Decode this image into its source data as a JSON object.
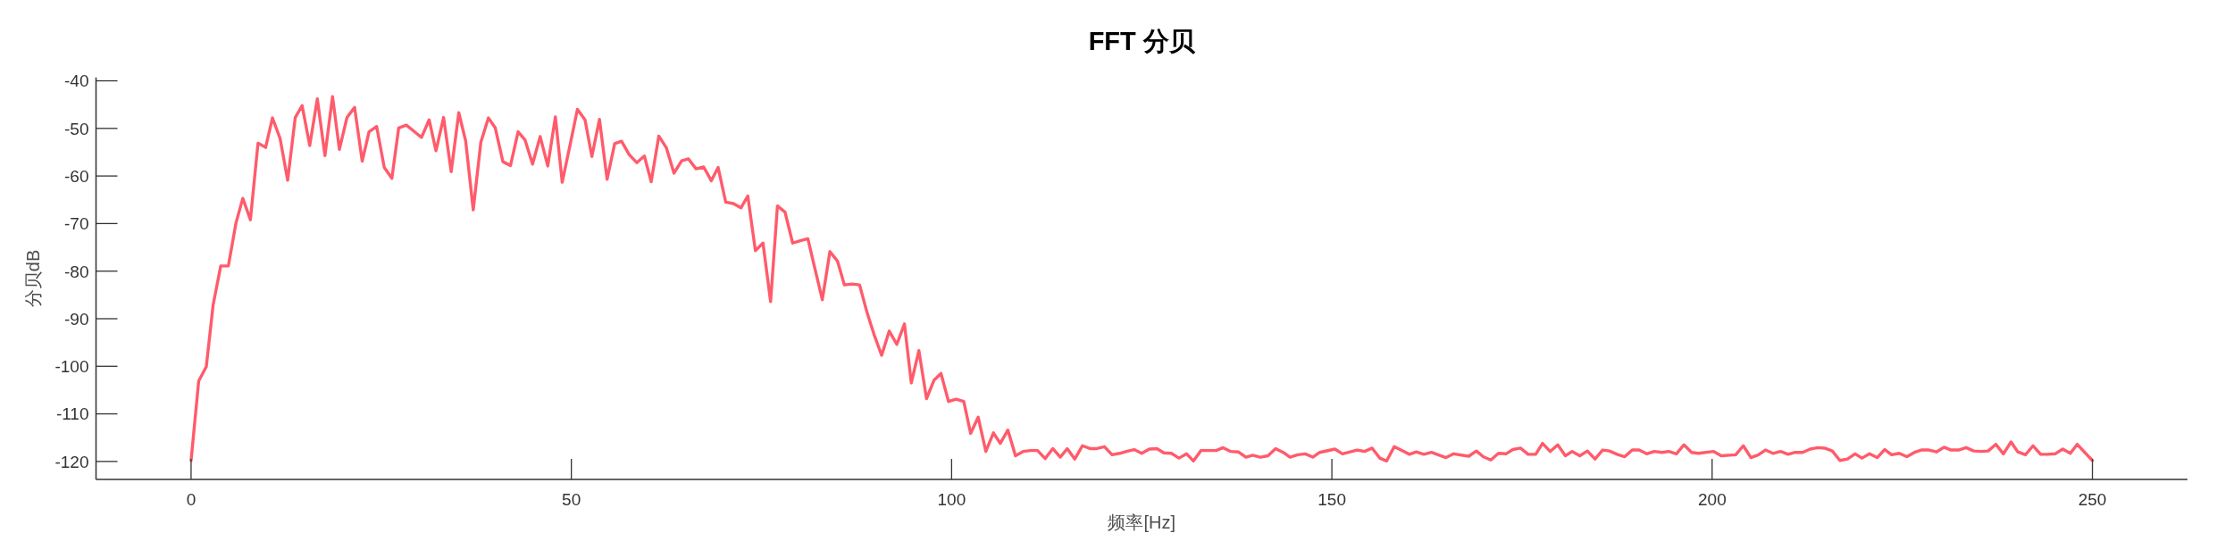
{
  "chart_data": {
    "type": "line",
    "title": "FFT 分贝",
    "xlabel": "频率[Hz]",
    "ylabel": "分贝dB",
    "x": [
      0,
      1.0,
      2.0,
      2.9,
      3.9,
      4.9,
      5.9,
      6.8,
      7.8,
      8.8,
      9.8,
      10.7,
      11.7,
      12.7,
      13.7,
      14.6,
      15.6,
      16.6,
      17.6,
      18.6,
      19.5,
      20.5,
      21.5,
      22.5,
      23.4,
      24.4,
      25.4,
      26.4,
      27.3,
      28.3,
      29.3,
      30.3,
      31.3,
      32.2,
      33.2,
      34.2,
      35.2,
      36.1,
      37.1,
      38.1,
      39.1,
      40.0,
      41.0,
      42.0,
      43.0,
      43.9,
      44.9,
      45.9,
      46.9,
      47.9,
      48.8,
      49.8,
      50.8,
      51.8,
      52.7,
      53.7,
      54.7,
      55.7,
      56.6,
      57.6,
      58.6,
      59.6,
      60.5,
      61.5,
      62.5,
      63.5,
      64.5,
      65.4,
      66.4,
      67.4,
      68.4,
      69.3,
      70.3,
      71.3,
      72.3,
      73.2,
      74.2,
      75.2,
      76.2,
      77.1,
      78.1,
      79.1,
      80.1,
      81.1,
      82.0,
      83.0,
      84.0,
      85.0,
      85.9,
      86.9,
      87.9,
      88.9,
      89.8,
      90.8,
      91.8,
      92.8,
      93.8,
      94.7,
      95.7,
      96.7,
      97.7,
      98.6,
      99.6,
      100.6,
      101.6,
      102.5,
      103.5,
      104.5,
      105.5,
      106.4,
      107.4,
      108.4,
      109.4,
      110.4,
      111.3,
      112.3,
      113.3,
      114.3,
      115.2,
      116.2,
      117.2,
      118.2,
      119.1,
      120.1,
      121.1,
      122.1,
      123.0,
      124.0,
      125.0,
      126.0,
      127.0,
      127.9,
      128.9,
      129.9,
      130.9,
      131.8,
      132.8,
      133.8,
      134.8,
      135.7,
      136.7,
      137.7,
      138.7,
      139.6,
      140.6,
      141.6,
      142.6,
      143.6,
      144.5,
      145.5,
      146.5,
      147.5,
      148.4,
      150.4,
      151.4,
      153.3,
      154.3,
      155.3,
      156.3,
      157.2,
      158.2,
      160.2,
      161.1,
      162.1,
      163.1,
      165.0,
      166.0,
      168.0,
      169.0,
      169.9,
      170.9,
      171.9,
      172.9,
      173.8,
      174.8,
      175.8,
      176.8,
      177.7,
      178.7,
      179.7,
      180.7,
      181.6,
      182.6,
      183.6,
      184.6,
      185.6,
      186.5,
      187.5,
      188.5,
      189.5,
      190.4,
      191.4,
      192.4,
      193.4,
      194.3,
      195.3,
      196.3,
      197.3,
      198.2,
      200.2,
      201.2,
      203.1,
      204.1,
      205.1,
      206.1,
      207.0,
      208.0,
      209.0,
      210.0,
      210.9,
      211.9,
      212.9,
      213.9,
      214.8,
      215.8,
      216.8,
      217.8,
      218.8,
      219.7,
      220.7,
      221.7,
      222.7,
      223.6,
      224.6,
      225.6,
      226.6,
      227.5,
      228.5,
      229.5,
      230.5,
      231.4,
      232.4,
      233.4,
      234.4,
      235.4,
      236.3,
      237.3,
      238.3,
      239.3,
      240.2,
      241.2,
      242.2,
      243.2,
      244.1,
      245.1,
      246.1,
      247.1,
      248.0,
      249.0,
      250
    ],
    "series": [
      {
        "color": "#ff5b6b",
        "values": [
          -119.8,
          -103.1,
          -100.1,
          -87.1,
          -78.9,
          -78.9,
          -69.9,
          -64.7,
          -69.2,
          -53.1,
          -54.0,
          -47.8,
          -52.1,
          -60.9,
          -47.7,
          -45.2,
          -53.6,
          -43.8,
          -55.7,
          -43.3,
          -54.4,
          -47.7,
          -45.6,
          -56.9,
          -50.7,
          -49.6,
          -58.2,
          -60.5,
          -49.9,
          -49.3,
          -50.6,
          -51.9,
          -48.2,
          -54.7,
          -47.7,
          -59.1,
          -46.7,
          -52.6,
          -67.1,
          -52.9,
          -47.8,
          -49.9,
          -57.0,
          -57.8,
          -50.7,
          -52.4,
          -57.5,
          -51.7,
          -57.9,
          -47.6,
          -61.3,
          -53.7,
          -46.0,
          -48.2,
          -55.9,
          -48.1,
          -60.7,
          -53.2,
          -52.7,
          -55.5,
          -57.2,
          -55.8,
          -61.2,
          -51.6,
          -54.1,
          -59.4,
          -56.8,
          -56.4,
          -58.5,
          -58.1,
          -61.0,
          -58.2,
          -65.5,
          -65.8,
          -66.7,
          -64.2,
          -75.7,
          -74.1,
          -86.4,
          -66.3,
          -67.6,
          -74.1,
          -73.6,
          -73.2,
          -79.3,
          -86.0,
          -75.9,
          -77.9,
          -82.9,
          -82.7,
          -82.9,
          -88.8,
          -93.3,
          -97.7,
          -92.6,
          -95.4,
          -91.1,
          -103.5,
          -96.7,
          -106.8,
          -102.9,
          -101.5,
          -107.4,
          -106.9,
          -107.4,
          -114.1,
          -110.7,
          -117.9,
          -114.0,
          -116.2,
          -113.4,
          -118.8,
          -117.9,
          -117.7,
          -117.7,
          -119.4,
          -117.3,
          -119.1,
          -117.3,
          -119.5,
          -116.7,
          -117.3,
          -117.3,
          -116.9,
          -118.6,
          -118.3,
          -117.9,
          -117.5,
          -118.3,
          -117.4,
          -117.3,
          -118.2,
          -118.3,
          -119.3,
          -118.4,
          -119.9,
          -117.7,
          -117.7,
          -117.7,
          -117.1,
          -117.9,
          -118.0,
          -119.1,
          -118.7,
          -119.1,
          -118.8,
          -117.3,
          -118.1,
          -119.1,
          -118.6,
          -118.4,
          -119.1,
          -118.1,
          -117.4,
          -118.4,
          -117.6,
          -117.9,
          -117.2,
          -119.3,
          -119.9,
          -116.9,
          -118.5,
          -118.0,
          -118.5,
          -118.1,
          -119.2,
          -118.4,
          -118.9,
          -117.8,
          -119.0,
          -119.7,
          -118.3,
          -118.4,
          -117.5,
          -117.2,
          -118.5,
          -118.5,
          -116.2,
          -117.9,
          -116.5,
          -118.8,
          -117.9,
          -118.8,
          -117.8,
          -119.5,
          -117.6,
          -117.8,
          -118.5,
          -119.0,
          -117.6,
          -117.6,
          -118.4,
          -117.9,
          -118.1,
          -117.9,
          -118.4,
          -116.5,
          -118.1,
          -118.3,
          -117.9,
          -118.8,
          -118.6,
          -116.7,
          -119.2,
          -118.6,
          -117.6,
          -118.3,
          -117.9,
          -118.5,
          -118.1,
          -118.1,
          -117.4,
          -117.1,
          -117.2,
          -117.8,
          -119.8,
          -119.5,
          -118.4,
          -119.3,
          -118.4,
          -119.2,
          -117.5,
          -118.6,
          -118.3,
          -119.0,
          -118.1,
          -117.6,
          -117.6,
          -118.0,
          -117.0,
          -117.6,
          -117.6,
          -117.1,
          -117.8,
          -117.9,
          -117.8,
          -116.4,
          -118.4,
          -115.9,
          -118.0,
          -118.6,
          -116.7,
          -118.5,
          -118.5,
          -118.4,
          -117.4,
          -118.3,
          -116.4,
          -118.1,
          -119.8
        ]
      }
    ],
    "xlim": [
      -12.5,
      262.5
    ],
    "ylim": [
      -123.8,
      -39.3
    ],
    "xticks": [
      0,
      50,
      100,
      150,
      200,
      250
    ],
    "yticks": [
      -120,
      -110,
      -100,
      -90,
      -80,
      -70,
      -60,
      -50,
      -40
    ],
    "line_style": "solid"
  }
}
